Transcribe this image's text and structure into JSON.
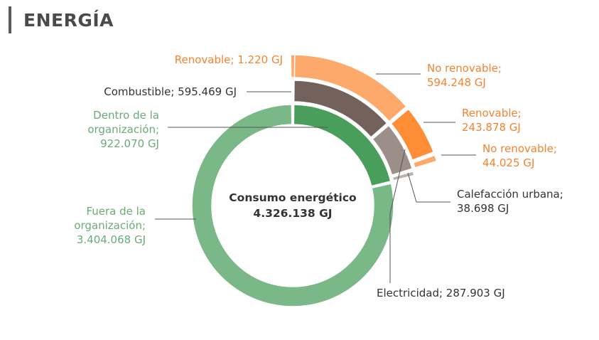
{
  "header": {
    "title": "ENERGÍA",
    "accent_color": "#5a5a5a"
  },
  "chart_data": {
    "type": "sunburst",
    "title": "",
    "center": {
      "label": "Consumo energético",
      "value": "4.326.138 GJ",
      "total": 4326138
    },
    "colors": {
      "dentro": "#4a9e5c",
      "fuera": "#7ab887",
      "combustible": "#73625c",
      "electricidad": "#9c8f8a",
      "calefaccion": "#b9b1ad",
      "renovable_combustible": "#fda96c",
      "no_renovable_combustible": "#fda96c",
      "renovable_electricidad": "#fe8d35",
      "no_renovable_electricidad": "#fda96c",
      "text_green": "#6aab77",
      "text_orange": "#f5822f",
      "text_dark": "#333333",
      "leader": "#555555"
    },
    "inner_ring": [
      {
        "key": "dentro",
        "value": 922070,
        "label_lines": [
          "Dentro de la",
          "organización;",
          "922.070 GJ"
        ]
      },
      {
        "key": "fuera",
        "value": 3404068,
        "label_lines": [
          "Fuera de la",
          "organización;",
          "3.404.068 GJ"
        ]
      }
    ],
    "middle_ring": [
      {
        "key": "combustible",
        "value": 595469,
        "label_lines": [
          "Combustible; 595.469 GJ"
        ]
      },
      {
        "key": "electricidad",
        "value": 287903,
        "label_lines": [
          "Electricidad; 287.903 GJ"
        ]
      },
      {
        "key": "calefaccion",
        "value": 38698,
        "label_lines": [
          "Calefacción urbana;",
          "38.698 GJ"
        ]
      }
    ],
    "outer_ring": [
      {
        "key": "renovable_combustible",
        "parent": "combustible",
        "value": 1220,
        "label_lines": [
          "Renovable; 1.220 GJ"
        ]
      },
      {
        "key": "no_renovable_combustible",
        "parent": "combustible",
        "value": 594248,
        "label_lines": [
          "No renovable;",
          "594.248 GJ"
        ]
      },
      {
        "key": "renovable_electricidad",
        "parent": "electricidad",
        "value": 243878,
        "label_lines": [
          "Renovable;",
          "243.878 GJ"
        ]
      },
      {
        "key": "no_renovable_electricidad",
        "parent": "electricidad",
        "value": 44025,
        "label_lines": [
          "No renovable;",
          "44.025 GJ"
        ]
      }
    ]
  }
}
